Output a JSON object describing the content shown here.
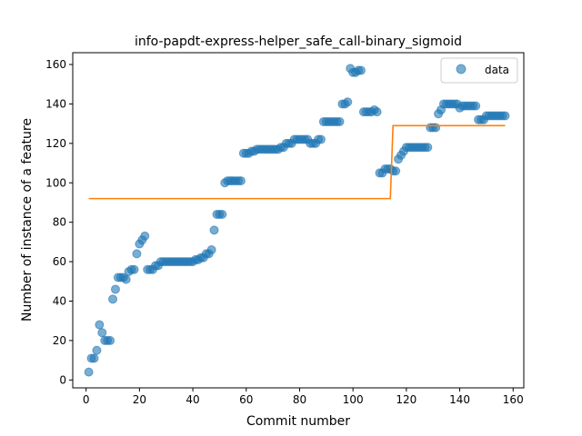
{
  "chart_data": {
    "type": "scatter",
    "title": "info-papdt-express-helper_safe_call-binary_sigmoid",
    "xlabel": "Commit number",
    "ylabel": "Number of instance of a feature",
    "xlim": [
      -5,
      164
    ],
    "ylim": [
      -4,
      166
    ],
    "xticks": [
      0,
      20,
      40,
      60,
      80,
      100,
      120,
      140,
      160
    ],
    "yticks": [
      0,
      20,
      40,
      60,
      80,
      100,
      120,
      140,
      160
    ],
    "grid": false,
    "legend_position": "top-right",
    "colors": {
      "data": "#1f77b4",
      "fit": "#ff7f0e"
    },
    "series": [
      {
        "name": "data",
        "kind": "scatter",
        "x": [
          1,
          2,
          3,
          4,
          5,
          6,
          7,
          8,
          9,
          10,
          11,
          12,
          13,
          14,
          15,
          16,
          17,
          18,
          19,
          20,
          21,
          22,
          23,
          24,
          25,
          26,
          27,
          28,
          29,
          30,
          31,
          32,
          33,
          34,
          35,
          36,
          37,
          38,
          39,
          40,
          41,
          42,
          43,
          44,
          45,
          46,
          47,
          48,
          49,
          50,
          51,
          52,
          53,
          54,
          55,
          56,
          57,
          58,
          59,
          60,
          61,
          62,
          63,
          64,
          65,
          66,
          67,
          68,
          69,
          70,
          71,
          72,
          73,
          74,
          75,
          76,
          77,
          78,
          79,
          80,
          81,
          82,
          83,
          84,
          85,
          86,
          87,
          88,
          89,
          90,
          91,
          92,
          93,
          94,
          95,
          96,
          97,
          98,
          99,
          100,
          101,
          102,
          103,
          104,
          105,
          106,
          107,
          108,
          109,
          110,
          111,
          112,
          113,
          114,
          115,
          116,
          117,
          118,
          119,
          120,
          121,
          122,
          123,
          124,
          125,
          126,
          127,
          128,
          129,
          130,
          131,
          132,
          133,
          134,
          135,
          136,
          137,
          138,
          139,
          140,
          141,
          142,
          143,
          144,
          145,
          146,
          147,
          148,
          149,
          150,
          151,
          152,
          153,
          154,
          155,
          156,
          157
        ],
        "y": [
          4,
          11,
          11,
          15,
          28,
          24,
          20,
          20,
          20,
          41,
          46,
          52,
          52,
          52,
          51,
          55,
          56,
          56,
          64,
          69,
          71,
          73,
          56,
          56,
          56,
          58,
          58,
          60,
          60,
          60,
          60,
          60,
          60,
          60,
          60,
          60,
          60,
          60,
          60,
          60,
          61,
          61,
          62,
          62,
          64,
          64,
          66,
          76,
          84,
          84,
          84,
          100,
          101,
          101,
          101,
          101,
          101,
          101,
          115,
          115,
          115,
          116,
          116,
          117,
          117,
          117,
          117,
          117,
          117,
          117,
          117,
          117,
          118,
          118,
          120,
          120,
          120,
          122,
          122,
          122,
          122,
          122,
          122,
          120,
          120,
          120,
          122,
          122,
          131,
          131,
          131,
          131,
          131,
          131,
          131,
          140,
          140,
          141,
          158,
          156,
          156,
          157,
          157,
          136,
          136,
          136,
          136,
          137,
          136,
          105,
          105,
          107,
          107,
          107,
          106,
          106,
          112,
          114,
          116,
          118,
          118,
          118,
          118,
          118,
          118,
          118,
          118,
          118,
          128,
          128,
          128,
          135,
          137,
          140,
          140,
          140,
          140,
          140,
          140,
          138,
          139,
          139,
          139,
          139,
          139,
          139,
          132,
          132,
          132,
          134,
          134,
          134,
          134,
          134,
          134,
          134,
          134
        ]
      },
      {
        "name": "",
        "kind": "line",
        "x": [
          1,
          114,
          115,
          157
        ],
        "y": [
          92,
          92,
          129,
          129
        ]
      }
    ]
  }
}
